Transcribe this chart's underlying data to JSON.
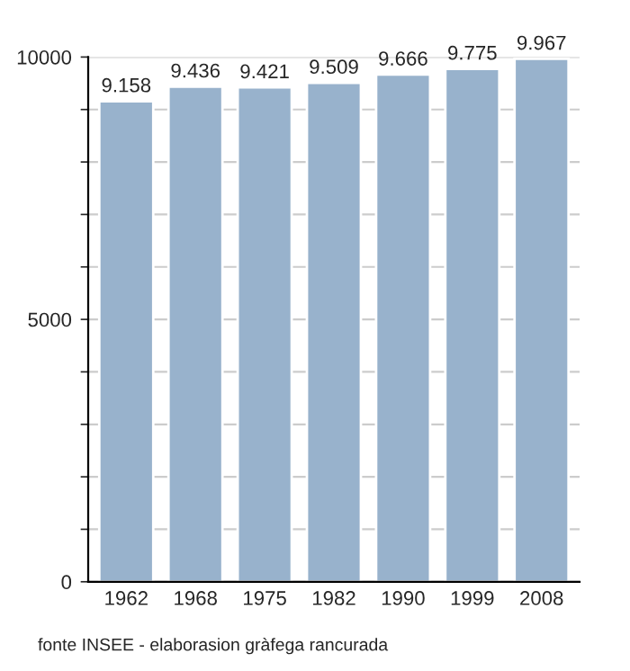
{
  "chart_data": {
    "type": "bar",
    "categories": [
      "1962",
      "1968",
      "1975",
      "1982",
      "1990",
      "1999",
      "2008"
    ],
    "values": [
      9158,
      9436,
      9421,
      9509,
      9666,
      9775,
      9967
    ],
    "value_labels": [
      "9.158",
      "9.436",
      "9.421",
      "9.509",
      "9.666",
      "9.775",
      "9.967"
    ],
    "color": "#98b2cc",
    "ylim": [
      0,
      10000
    ],
    "yticks": [
      0,
      {
        "value": 1000,
        "label": null
      },
      {
        "value": 2000,
        "label": null
      },
      {
        "value": 3000,
        "label": null
      },
      {
        "value": 4000,
        "label": null
      },
      5000,
      {
        "value": 6000,
        "label": null
      },
      {
        "value": 7000,
        "label": null
      },
      {
        "value": 8000,
        "label": null
      },
      {
        "value": 9000,
        "label": null
      },
      10000
    ],
    "grid": "y",
    "annotations": [
      "fonte INSEE - elaborasion gràfega rancurada"
    ]
  }
}
